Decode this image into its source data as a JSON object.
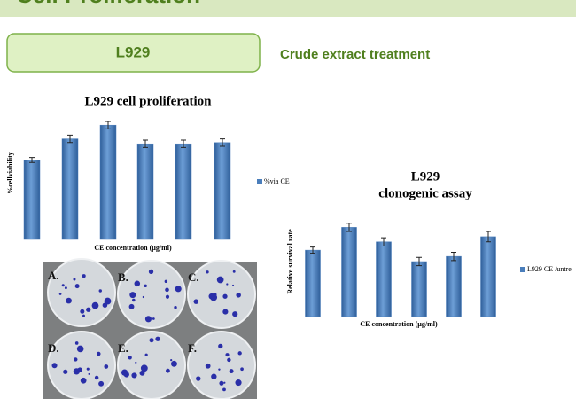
{
  "header": {
    "title": "Cell Proliferation"
  },
  "cell_line_box": {
    "label": "L929"
  },
  "subtitle": "Crude extract treatment",
  "photo": {
    "labels": [
      "A.",
      "B.",
      "C.",
      "D.",
      "E.",
      "F."
    ]
  },
  "chart_data": [
    {
      "type": "bar",
      "title": "L929 cell proliferation",
      "y_label": "%cellviability",
      "x_label": "CE  concentration  (µg/ml)",
      "series_name": "%via CE",
      "color": "#4a7ebb",
      "values": [
        64,
        81,
        92,
        77,
        77,
        78
      ],
      "errors": [
        2,
        3,
        3,
        3,
        3,
        3
      ],
      "ylim": [
        0,
        100
      ]
    },
    {
      "type": "bar",
      "title_lines": [
        "L929",
        "clonogenic assay"
      ],
      "y_label": "Relative  survival  rate",
      "x_label": "CE  concentration  (µg/ml)",
      "series_name": "L929 CE /untre",
      "color": "#4a7ebb",
      "values": [
        64,
        86,
        72,
        53,
        58,
        77
      ],
      "errors": [
        3,
        4,
        4,
        4,
        4,
        5
      ],
      "ylim": [
        0,
        100
      ]
    }
  ]
}
